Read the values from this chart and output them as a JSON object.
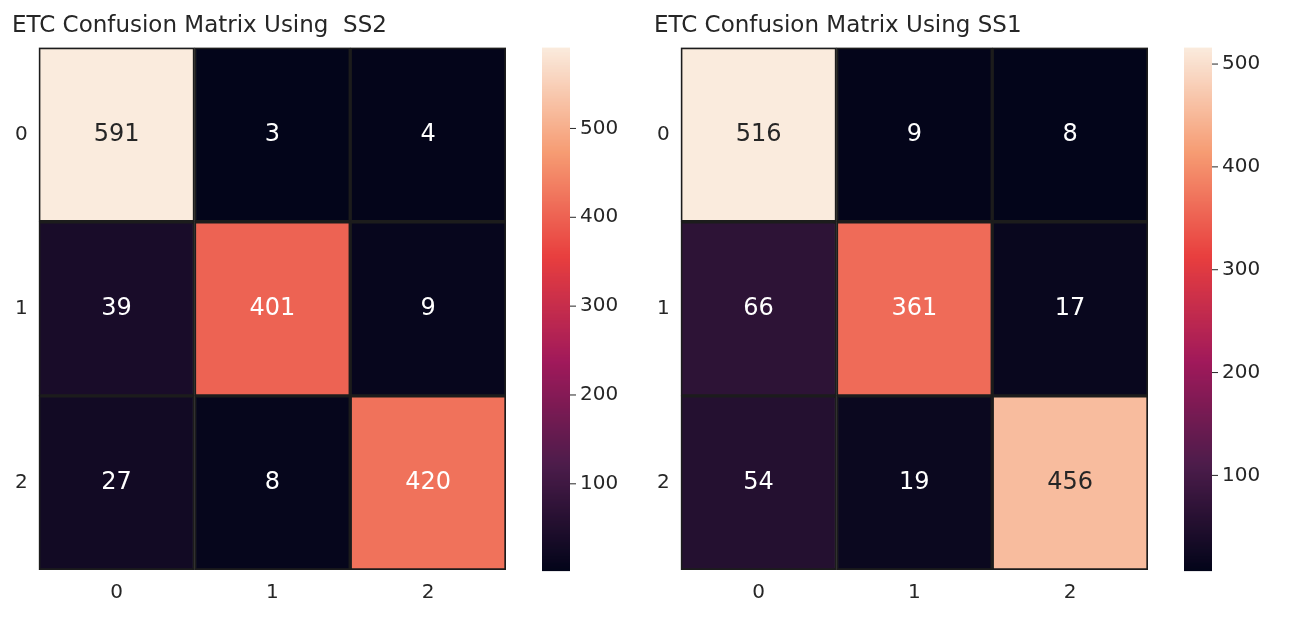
{
  "chart_data": [
    {
      "type": "heatmap",
      "title": "ETC Confusion Matrix Using  SS2",
      "categories": [
        "0",
        "1",
        "2"
      ],
      "y_categories": [
        "0",
        "1",
        "2"
      ],
      "cells": [
        [
          591,
          3,
          4
        ],
        [
          39,
          401,
          9
        ],
        [
          27,
          8,
          420
        ]
      ],
      "clim": [
        3,
        591
      ],
      "cticks": [
        100,
        200,
        300,
        400,
        500
      ],
      "data_labels": true
    },
    {
      "type": "heatmap",
      "title": "ETC Confusion Matrix Using SS1",
      "categories": [
        "0",
        "1",
        "2"
      ],
      "y_categories": [
        "0",
        "1",
        "2"
      ],
      "cells": [
        [
          516,
          9,
          8
        ],
        [
          66,
          361,
          17
        ],
        [
          54,
          19,
          456
        ]
      ],
      "clim": [
        8,
        516
      ],
      "cticks": [
        100,
        200,
        300,
        400,
        500
      ],
      "data_labels": true
    }
  ]
}
